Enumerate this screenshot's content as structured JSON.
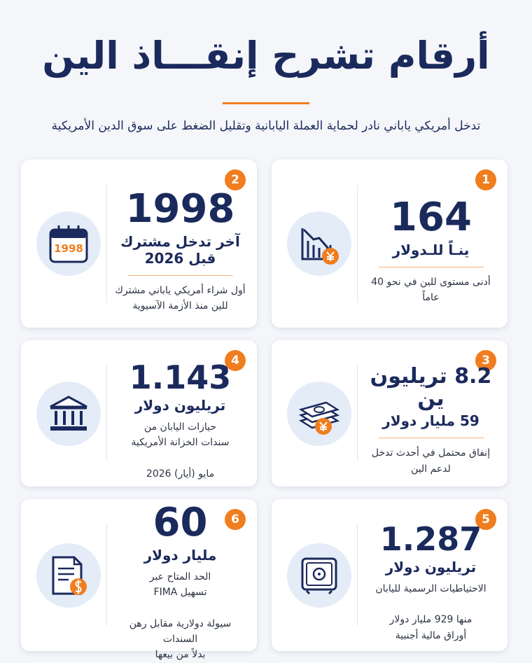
{
  "header": {
    "title": "أرقام تشرح إنقـــاذ الين",
    "subtitle": "تدخل أمريكي ياباني نادر لحماية العملة اليابانية وتقليل الضغط على سوق الدين الأمريكية"
  },
  "cards": [
    {
      "badge": "1",
      "headline": "164",
      "subheadline": "ينـاً للـدولار",
      "body": [],
      "footer": [
        "أدنى مستوى للين في نحو 40 عاماً"
      ]
    },
    {
      "badge": "2",
      "headline": "1998",
      "subheadline": "آخر تدخل مشترك قبل 2026",
      "body": [],
      "footer": [
        "أول شراء أمريكي ياباني مشترك",
        "للين منذ الأزمة الآسيوية"
      ],
      "icon_text": "1998"
    },
    {
      "badge": "3",
      "headline": "8.2 تريليون ين",
      "subheadline": "59 مليار دولار",
      "body": [],
      "footer": [
        "إنفاق محتمل في أحدث تدخل",
        "لدعم الين"
      ]
    },
    {
      "badge": "4",
      "headline": "1.143",
      "subheadline": "تريليون دولار",
      "body": [
        "حيازات اليابان من",
        "سندات الخزانة الأمريكية"
      ],
      "footer": [
        "مايو (أيار) 2026"
      ]
    },
    {
      "badge": "5",
      "headline": "1.287",
      "subheadline": "تريليون دولار",
      "body": [
        "الاحتياطيات الرسمية لليابان"
      ],
      "footer": [
        "منها 929 مليار دولار",
        "أوراق مالية أجنبية"
      ]
    },
    {
      "badge": "6",
      "headline": "60",
      "subheadline": "مليار دولار",
      "body": [
        "الحد المتاح عبر",
        "تسهيل FIMA"
      ],
      "footer": [
        "سيولة دولارية مقابل رهن السندات",
        "بدلاً من بيعها"
      ]
    }
  ]
}
